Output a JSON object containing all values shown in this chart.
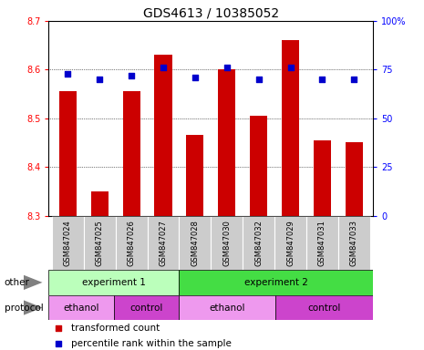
{
  "title": "GDS4613 / 10385052",
  "samples": [
    "GSM847024",
    "GSM847025",
    "GSM847026",
    "GSM847027",
    "GSM847028",
    "GSM847030",
    "GSM847032",
    "GSM847029",
    "GSM847031",
    "GSM847033"
  ],
  "bar_values": [
    8.555,
    8.35,
    8.555,
    8.63,
    8.465,
    8.6,
    8.505,
    8.66,
    8.455,
    8.45
  ],
  "bar_base": 8.3,
  "percentile_values": [
    73,
    70,
    72,
    76,
    71,
    76,
    70,
    76,
    70,
    70
  ],
  "ylim": [
    8.3,
    8.7
  ],
  "y2lim": [
    0,
    100
  ],
  "yticks": [
    8.3,
    8.4,
    8.5,
    8.6,
    8.7
  ],
  "y2ticks": [
    0,
    25,
    50,
    75,
    100
  ],
  "bar_color": "#cc0000",
  "dot_color": "#0000cc",
  "experiment1_color": "#bbffbb",
  "experiment2_color": "#44dd44",
  "ethanol_color": "#ee99ee",
  "control_color": "#cc44cc",
  "sample_bg_color": "#cccccc",
  "title_fontsize": 10,
  "tick_fontsize": 7,
  "sample_fontsize": 6,
  "row_fontsize": 7.5,
  "legend_fontsize": 7.5
}
